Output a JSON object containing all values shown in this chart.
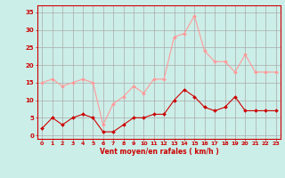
{
  "x": [
    0,
    1,
    2,
    3,
    4,
    5,
    6,
    7,
    8,
    9,
    10,
    11,
    12,
    13,
    14,
    15,
    16,
    17,
    18,
    19,
    20,
    21,
    22,
    23
  ],
  "avg_wind": [
    2,
    5,
    3,
    5,
    6,
    5,
    1,
    1,
    3,
    5,
    5,
    6,
    6,
    10,
    13,
    11,
    8,
    7,
    8,
    11,
    7,
    7,
    7,
    7
  ],
  "gust_wind": [
    15,
    16,
    14,
    15,
    16,
    15,
    3,
    9,
    11,
    14,
    12,
    16,
    16,
    28,
    29,
    34,
    24,
    21,
    21,
    18,
    23,
    18,
    18,
    18
  ],
  "avg_color": "#cc0000",
  "gust_color": "#ff9999",
  "bg_color": "#cceee8",
  "grid_color": "#aaaaaa",
  "xlabel": "Vent moyen/en rafales ( km/h )",
  "yticks": [
    0,
    5,
    10,
    15,
    20,
    25,
    30,
    35
  ],
  "ylim": [
    -1,
    37
  ],
  "xlim": [
    -0.5,
    23.5
  ],
  "figwidth": 3.2,
  "figheight": 2.0,
  "dpi": 100
}
